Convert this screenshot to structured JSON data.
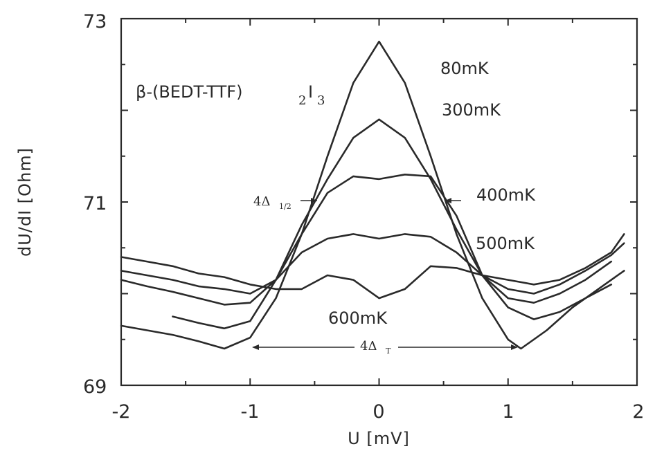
{
  "chart_data": {
    "type": "line",
    "xlabel": "U [mV]",
    "ylabel": "dU/dI [Ohm]",
    "xlim": [
      -2,
      2
    ],
    "ylim": [
      69,
      73
    ],
    "x_ticks": [
      "-2",
      "-1",
      "0",
      "1",
      "2"
    ],
    "y_ticks": [
      "69",
      "71",
      "73"
    ],
    "grid": false,
    "annotations": {
      "compound": "β-(BEDT-TTF)",
      "compound_sub_2": "2",
      "compound_I": "I",
      "compound_sub_3": "3",
      "half_gap_main": "4Δ",
      "half_gap_sub": "1/2",
      "gap_main": "4Δ",
      "gap_sub": "T"
    },
    "series": [
      {
        "name": "80mK",
        "x": [
          -2.0,
          -1.8,
          -1.6,
          -1.4,
          -1.2,
          -1.0,
          -0.8,
          -0.6,
          -0.4,
          -0.2,
          0.0,
          0.2,
          0.4,
          0.6,
          0.8,
          1.0,
          1.1,
          1.3,
          1.5,
          1.7,
          1.9
        ],
        "y": [
          69.65,
          69.6,
          69.55,
          69.48,
          69.4,
          69.52,
          69.95,
          70.65,
          71.5,
          72.3,
          72.75,
          72.3,
          71.5,
          70.65,
          69.95,
          69.5,
          69.4,
          69.6,
          69.85,
          70.05,
          70.25
        ]
      },
      {
        "name": "300mK",
        "x": [
          -1.6,
          -1.4,
          -1.2,
          -1.0,
          -0.8,
          -0.6,
          -0.4,
          -0.2,
          0.0,
          0.2,
          0.4,
          0.6,
          0.8,
          1.0,
          1.2,
          1.4,
          1.6,
          1.8
        ],
        "y": [
          69.75,
          69.68,
          69.62,
          69.7,
          70.15,
          70.75,
          71.25,
          71.7,
          71.9,
          71.7,
          71.25,
          70.7,
          70.2,
          69.85,
          69.72,
          69.8,
          69.95,
          70.1
        ]
      },
      {
        "name": "400mK",
        "x": [
          -2.0,
          -1.8,
          -1.6,
          -1.4,
          -1.2,
          -1.0,
          -0.8,
          -0.6,
          -0.4,
          -0.2,
          0.0,
          0.2,
          0.4,
          0.6,
          0.8,
          1.0,
          1.2,
          1.4,
          1.6,
          1.8
        ],
        "y": [
          70.15,
          70.08,
          70.02,
          69.95,
          69.88,
          69.9,
          70.15,
          70.65,
          71.1,
          71.28,
          71.25,
          71.3,
          71.28,
          70.85,
          70.2,
          69.95,
          69.9,
          70.0,
          70.15,
          70.35
        ]
      },
      {
        "name": "500mK",
        "x": [
          -2.0,
          -1.8,
          -1.6,
          -1.4,
          -1.2,
          -1.0,
          -0.8,
          -0.6,
          -0.4,
          -0.2,
          0.0,
          0.2,
          0.4,
          0.6,
          0.8,
          1.0,
          1.2,
          1.4,
          1.6,
          1.8,
          1.9
        ],
        "y": [
          70.25,
          70.2,
          70.15,
          70.08,
          70.05,
          70.0,
          70.15,
          70.45,
          70.6,
          70.65,
          70.6,
          70.65,
          70.62,
          70.45,
          70.2,
          70.05,
          70.0,
          70.1,
          70.25,
          70.42,
          70.55
        ]
      },
      {
        "name": "600mK",
        "x": [
          -2.0,
          -1.8,
          -1.6,
          -1.4,
          -1.2,
          -1.0,
          -0.8,
          -0.6,
          -0.4,
          -0.2,
          0.0,
          0.2,
          0.4,
          0.6,
          0.8,
          1.0,
          1.2,
          1.4,
          1.6,
          1.8,
          1.9
        ],
        "y": [
          70.4,
          70.35,
          70.3,
          70.22,
          70.18,
          70.1,
          70.05,
          70.05,
          70.2,
          70.15,
          69.95,
          70.05,
          70.3,
          70.28,
          70.2,
          70.15,
          70.1,
          70.15,
          70.28,
          70.45,
          70.65
        ]
      }
    ],
    "curve_labels": [
      "80mK",
      "300mK",
      "400mK",
      "500mK",
      "600mK"
    ]
  }
}
